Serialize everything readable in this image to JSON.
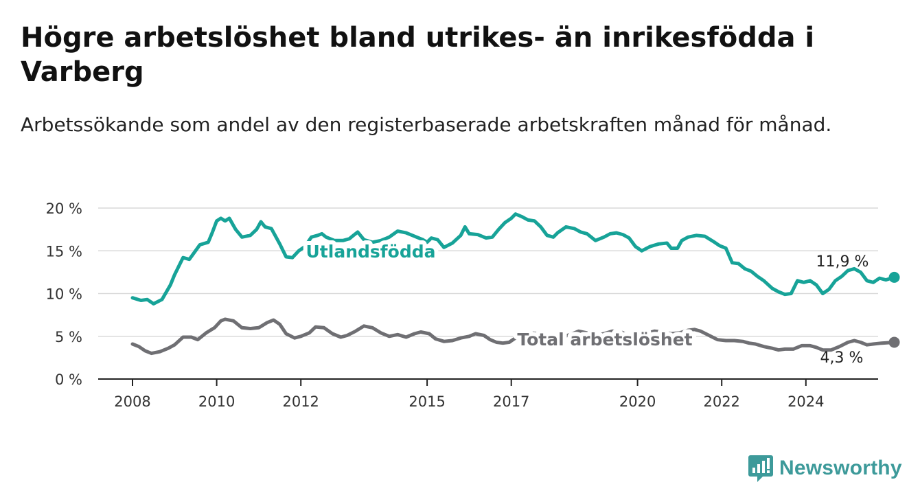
{
  "header": {
    "title": "Högre arbetslöshet bland utrikes- än inrikesfödda i Varberg",
    "subtitle": "Arbetssökande som andel av den registerbaserade arbetskraften månad för månad."
  },
  "brand": {
    "name": "Newsworthy",
    "color": "#3d9a9a",
    "icon": "newsworthy-logo-icon"
  },
  "chart_data": {
    "type": "line",
    "title": "Högre arbetslöshet bland utrikes- än inrikesfödda i Varberg",
    "subtitle": "Arbetssökande som andel av den registerbaserade arbetskraften månad för månad.",
    "xlabel": "",
    "ylabel": "",
    "x_range": [
      2008.0,
      2025.0
    ],
    "ylim": [
      0,
      20
    ],
    "y_ticks": [
      {
        "value": 0,
        "label": "0 %"
      },
      {
        "value": 5,
        "label": "5 %"
      },
      {
        "value": 10,
        "label": "10 %"
      },
      {
        "value": 15,
        "label": "15 %"
      },
      {
        "value": 20,
        "label": "20 %"
      }
    ],
    "x_ticks": [
      {
        "value": 2008,
        "label": "2008"
      },
      {
        "value": 2010,
        "label": "2010"
      },
      {
        "value": 2012,
        "label": "2012"
      },
      {
        "value": 2015,
        "label": "2015"
      },
      {
        "value": 2017,
        "label": "2017"
      },
      {
        "value": 2020,
        "label": "2020"
      },
      {
        "value": 2022,
        "label": "2022"
      },
      {
        "value": 2024,
        "label": "2024"
      }
    ],
    "grid": true,
    "legend": "direct labels on lines",
    "series": [
      {
        "name": "Utlandsfödda",
        "color": "#17a398",
        "end_label": "11,9 %",
        "points": [
          [
            2008.0,
            9.5
          ],
          [
            2008.2,
            9.2
          ],
          [
            2008.35,
            9.3
          ],
          [
            2008.5,
            8.8
          ],
          [
            2008.7,
            9.3
          ],
          [
            2008.9,
            11.0
          ],
          [
            2009.0,
            12.2
          ],
          [
            2009.2,
            14.2
          ],
          [
            2009.35,
            14.0
          ],
          [
            2009.6,
            15.7
          ],
          [
            2009.8,
            16.0
          ],
          [
            2009.9,
            17.2
          ],
          [
            2010.0,
            18.5
          ],
          [
            2010.1,
            18.8
          ],
          [
            2010.2,
            18.5
          ],
          [
            2010.3,
            18.8
          ],
          [
            2010.45,
            17.5
          ],
          [
            2010.6,
            16.6
          ],
          [
            2010.8,
            16.8
          ],
          [
            2010.95,
            17.5
          ],
          [
            2011.05,
            18.4
          ],
          [
            2011.15,
            17.8
          ],
          [
            2011.3,
            17.6
          ],
          [
            2011.5,
            15.8
          ],
          [
            2011.65,
            14.3
          ],
          [
            2011.8,
            14.2
          ],
          [
            2011.95,
            15.0
          ],
          [
            2012.1,
            15.5
          ],
          [
            2012.25,
            16.6
          ],
          [
            2012.4,
            16.8
          ],
          [
            2012.5,
            17.0
          ],
          [
            2012.6,
            16.6
          ],
          [
            2012.8,
            16.2
          ],
          [
            2013.0,
            16.2
          ],
          [
            2013.15,
            16.4
          ],
          [
            2013.25,
            16.8
          ],
          [
            2013.35,
            17.2
          ],
          [
            2013.5,
            16.3
          ],
          [
            2013.7,
            16.0
          ],
          [
            2013.9,
            16.2
          ],
          [
            2014.1,
            16.6
          ],
          [
            2014.3,
            17.3
          ],
          [
            2014.5,
            17.1
          ],
          [
            2014.7,
            16.7
          ],
          [
            2014.9,
            16.3
          ],
          [
            2015.0,
            16.0
          ],
          [
            2015.1,
            16.5
          ],
          [
            2015.25,
            16.3
          ],
          [
            2015.4,
            15.4
          ],
          [
            2015.6,
            15.9
          ],
          [
            2015.8,
            16.8
          ],
          [
            2015.9,
            17.8
          ],
          [
            2016.0,
            17.0
          ],
          [
            2016.2,
            16.9
          ],
          [
            2016.4,
            16.5
          ],
          [
            2016.55,
            16.6
          ],
          [
            2016.7,
            17.5
          ],
          [
            2016.85,
            18.3
          ],
          [
            2017.0,
            18.8
          ],
          [
            2017.1,
            19.3
          ],
          [
            2017.25,
            19.0
          ],
          [
            2017.4,
            18.6
          ],
          [
            2017.55,
            18.5
          ],
          [
            2017.7,
            17.8
          ],
          [
            2017.85,
            16.8
          ],
          [
            2018.0,
            16.6
          ],
          [
            2018.1,
            17.1
          ],
          [
            2018.3,
            17.8
          ],
          [
            2018.5,
            17.6
          ],
          [
            2018.65,
            17.2
          ],
          [
            2018.8,
            17.0
          ],
          [
            2019.0,
            16.2
          ],
          [
            2019.2,
            16.6
          ],
          [
            2019.35,
            17.0
          ],
          [
            2019.5,
            17.1
          ],
          [
            2019.65,
            16.9
          ],
          [
            2019.8,
            16.5
          ],
          [
            2019.95,
            15.5
          ],
          [
            2020.1,
            15.0
          ],
          [
            2020.3,
            15.5
          ],
          [
            2020.5,
            15.8
          ],
          [
            2020.7,
            15.9
          ],
          [
            2020.8,
            15.3
          ],
          [
            2020.95,
            15.3
          ],
          [
            2021.05,
            16.2
          ],
          [
            2021.2,
            16.6
          ],
          [
            2021.4,
            16.8
          ],
          [
            2021.6,
            16.7
          ],
          [
            2021.8,
            16.1
          ],
          [
            2021.95,
            15.6
          ],
          [
            2022.1,
            15.3
          ],
          [
            2022.25,
            13.6
          ],
          [
            2022.4,
            13.5
          ],
          [
            2022.55,
            12.9
          ],
          [
            2022.7,
            12.6
          ],
          [
            2022.85,
            12.0
          ],
          [
            2023.0,
            11.5
          ],
          [
            2023.2,
            10.6
          ],
          [
            2023.35,
            10.2
          ],
          [
            2023.5,
            9.9
          ],
          [
            2023.65,
            10.0
          ],
          [
            2023.8,
            11.5
          ],
          [
            2023.95,
            11.3
          ],
          [
            2024.1,
            11.5
          ],
          [
            2024.25,
            11.0
          ],
          [
            2024.4,
            10.0
          ],
          [
            2024.55,
            10.5
          ],
          [
            2024.7,
            11.5
          ],
          [
            2024.85,
            12.0
          ],
          [
            2025.0,
            12.7
          ],
          [
            2025.15,
            12.9
          ],
          [
            2025.3,
            12.5
          ],
          [
            2025.45,
            11.5
          ],
          [
            2025.6,
            11.3
          ],
          [
            2025.75,
            11.8
          ],
          [
            2025.9,
            11.6
          ],
          [
            2026.1,
            11.9
          ]
        ]
      },
      {
        "name": "Total arbetslöshet",
        "color": "#6f6f73",
        "end_label": "4,3 %",
        "points": [
          [
            2008.0,
            4.1
          ],
          [
            2008.15,
            3.8
          ],
          [
            2008.3,
            3.3
          ],
          [
            2008.45,
            3.0
          ],
          [
            2008.65,
            3.2
          ],
          [
            2008.85,
            3.6
          ],
          [
            2009.0,
            4.0
          ],
          [
            2009.2,
            4.9
          ],
          [
            2009.4,
            4.9
          ],
          [
            2009.55,
            4.6
          ],
          [
            2009.75,
            5.4
          ],
          [
            2009.95,
            6.0
          ],
          [
            2010.1,
            6.8
          ],
          [
            2010.2,
            7.0
          ],
          [
            2010.4,
            6.8
          ],
          [
            2010.6,
            6.0
          ],
          [
            2010.8,
            5.9
          ],
          [
            2011.0,
            6.0
          ],
          [
            2011.2,
            6.6
          ],
          [
            2011.35,
            6.9
          ],
          [
            2011.5,
            6.4
          ],
          [
            2011.65,
            5.3
          ],
          [
            2011.85,
            4.8
          ],
          [
            2012.0,
            5.0
          ],
          [
            2012.2,
            5.4
          ],
          [
            2012.35,
            6.1
          ],
          [
            2012.55,
            6.0
          ],
          [
            2012.75,
            5.3
          ],
          [
            2012.95,
            4.9
          ],
          [
            2013.1,
            5.1
          ],
          [
            2013.3,
            5.6
          ],
          [
            2013.5,
            6.2
          ],
          [
            2013.7,
            6.0
          ],
          [
            2013.9,
            5.4
          ],
          [
            2014.1,
            5.0
          ],
          [
            2014.3,
            5.2
          ],
          [
            2014.5,
            4.9
          ],
          [
            2014.7,
            5.3
          ],
          [
            2014.85,
            5.5
          ],
          [
            2015.05,
            5.3
          ],
          [
            2015.2,
            4.7
          ],
          [
            2015.4,
            4.4
          ],
          [
            2015.6,
            4.5
          ],
          [
            2015.8,
            4.8
          ],
          [
            2016.0,
            5.0
          ],
          [
            2016.15,
            5.3
          ],
          [
            2016.35,
            5.1
          ],
          [
            2016.5,
            4.6
          ],
          [
            2016.65,
            4.3
          ],
          [
            2016.8,
            4.2
          ],
          [
            2016.95,
            4.3
          ],
          [
            2017.1,
            4.8
          ],
          [
            2017.3,
            5.0
          ],
          [
            2017.45,
            5.4
          ],
          [
            2017.65,
            5.3
          ],
          [
            2017.85,
            4.9
          ],
          [
            2018.0,
            4.7
          ],
          [
            2018.2,
            4.9
          ],
          [
            2018.4,
            5.2
          ],
          [
            2018.6,
            5.6
          ],
          [
            2018.8,
            5.4
          ],
          [
            2019.0,
            5.1
          ],
          [
            2019.2,
            5.3
          ],
          [
            2019.4,
            5.6
          ],
          [
            2019.6,
            5.5
          ],
          [
            2019.8,
            5.1
          ],
          [
            2020.0,
            5.0
          ],
          [
            2020.2,
            5.3
          ],
          [
            2020.4,
            5.6
          ],
          [
            2020.6,
            5.5
          ],
          [
            2020.8,
            5.3
          ],
          [
            2021.0,
            5.4
          ],
          [
            2021.2,
            5.7
          ],
          [
            2021.35,
            5.8
          ],
          [
            2021.5,
            5.6
          ],
          [
            2021.7,
            5.1
          ],
          [
            2021.9,
            4.6
          ],
          [
            2022.1,
            4.5
          ],
          [
            2022.3,
            4.5
          ],
          [
            2022.5,
            4.4
          ],
          [
            2022.65,
            4.2
          ],
          [
            2022.8,
            4.1
          ],
          [
            2023.0,
            3.8
          ],
          [
            2023.2,
            3.6
          ],
          [
            2023.35,
            3.4
          ],
          [
            2023.5,
            3.5
          ],
          [
            2023.7,
            3.5
          ],
          [
            2023.9,
            3.9
          ],
          [
            2024.1,
            3.9
          ],
          [
            2024.25,
            3.7
          ],
          [
            2024.4,
            3.4
          ],
          [
            2024.6,
            3.4
          ],
          [
            2024.8,
            3.8
          ],
          [
            2025.0,
            4.3
          ],
          [
            2025.15,
            4.5
          ],
          [
            2025.3,
            4.3
          ],
          [
            2025.45,
            4.0
          ],
          [
            2025.6,
            4.1
          ],
          [
            2025.8,
            4.2
          ],
          [
            2026.1,
            4.3
          ]
        ]
      }
    ]
  }
}
